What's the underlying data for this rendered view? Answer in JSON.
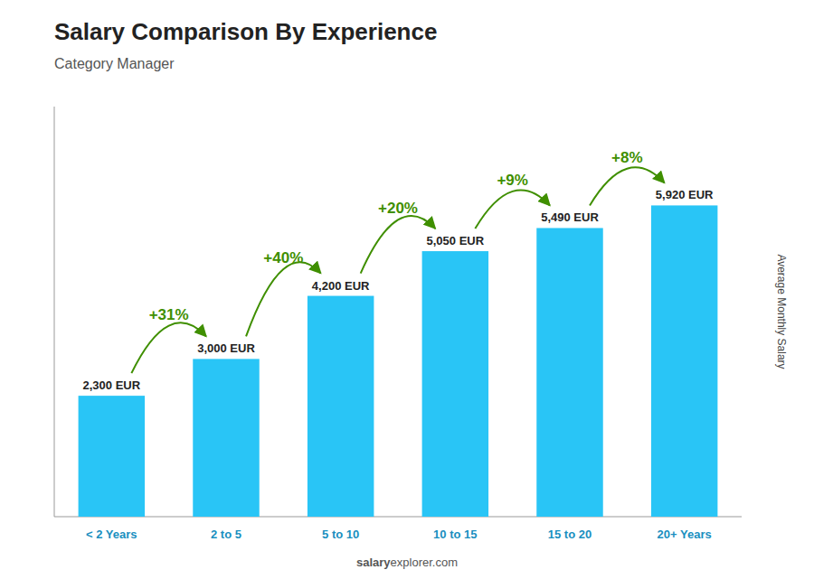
{
  "chart_data": {
    "type": "bar",
    "title": "Salary Comparison By Experience",
    "subtitle": "Category Manager",
    "categories": [
      "< 2 Years",
      "2 to 5",
      "5 to 10",
      "10 to 15",
      "15 to 20",
      "20+ Years"
    ],
    "values": [
      2300,
      3000,
      4200,
      5050,
      5490,
      5920
    ],
    "value_labels": [
      "2,300 EUR",
      "3,000 EUR",
      "4,200 EUR",
      "5,050 EUR",
      "5,490 EUR",
      "5,920 EUR"
    ],
    "data_labels": true,
    "color": "#29C5F6",
    "ylabel": "Average Monthly Salary",
    "ylim": [
      0,
      7800
    ],
    "yticks": [],
    "tick_labels": "x",
    "grid": false,
    "annotations": [
      "+31%",
      "+40%",
      "+20%",
      "+9%",
      "+8%"
    ],
    "footer": [
      "salary",
      "explorer.com"
    ]
  }
}
